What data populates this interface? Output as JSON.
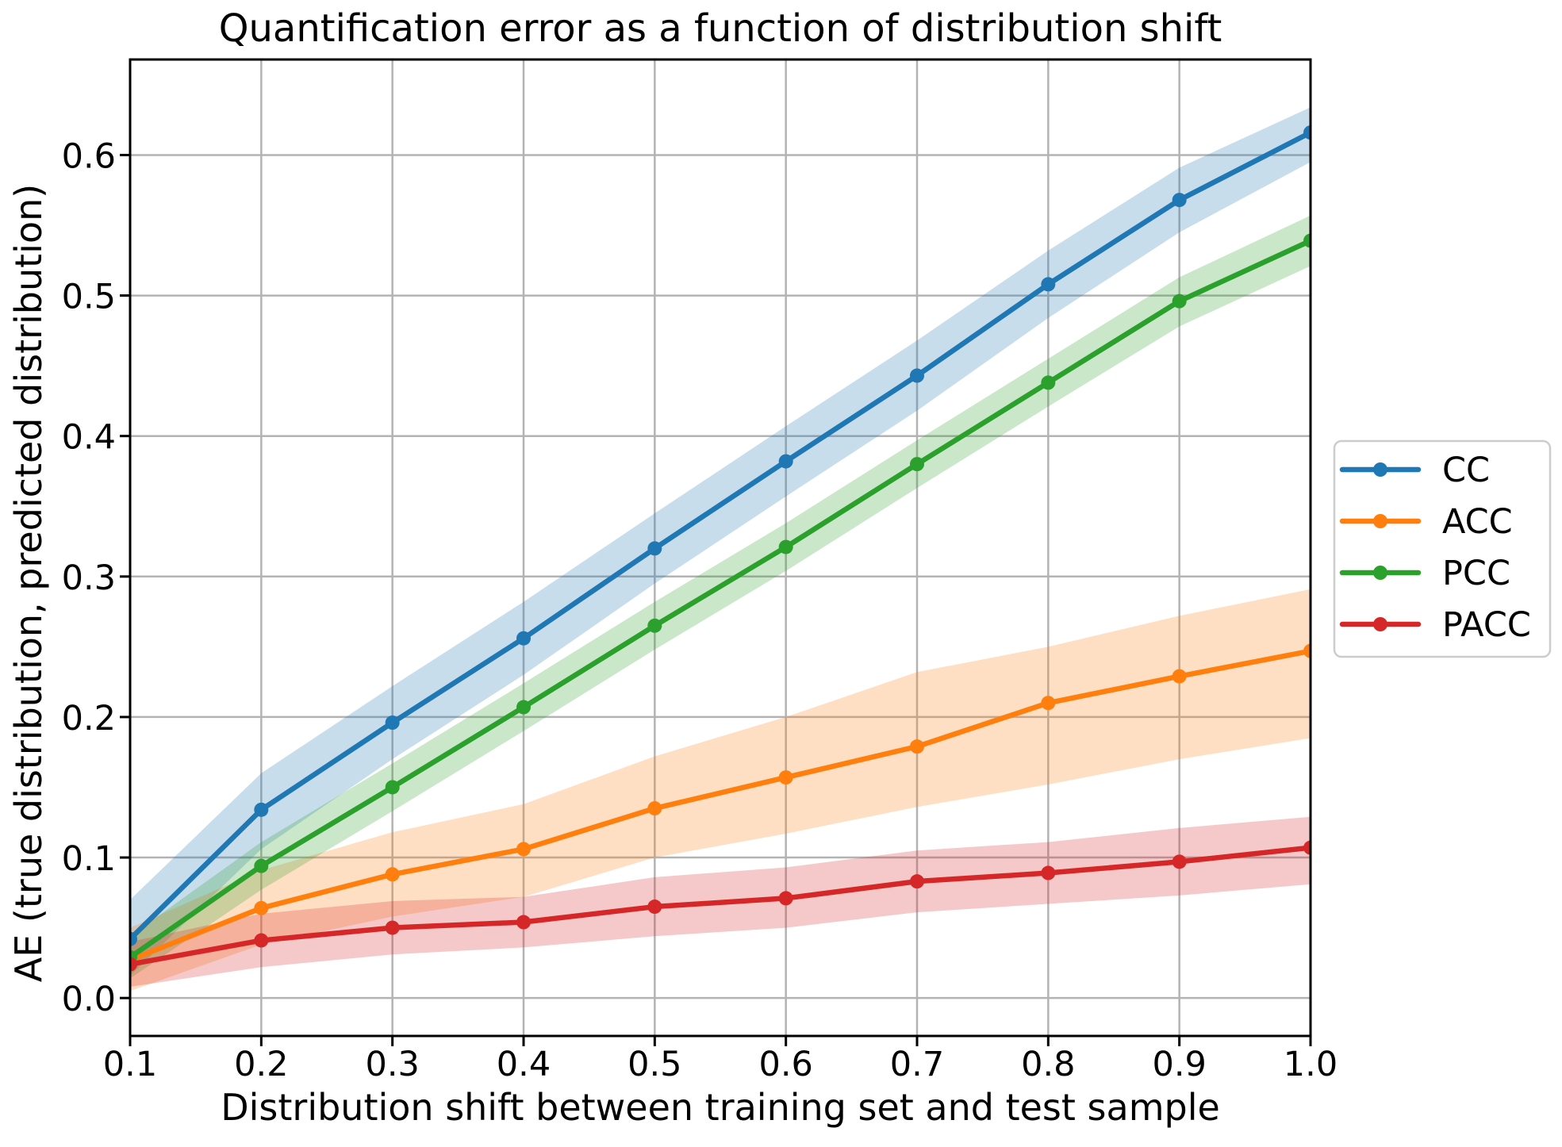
{
  "figure": {
    "background_color": "#ffffff",
    "text_color": "#000000",
    "grid_color": "#b3b3b3",
    "spine_color": "#000000",
    "legend_border_color": "#cccccc",
    "legend_background_color": "#ffffff"
  },
  "chart_data": {
    "type": "line",
    "title": "Quantification error as a function of distribution shift",
    "xlabel": "Distribution shift between training set and test sample",
    "ylabel": "AE (true distribution, predicted distribution)",
    "grid": true,
    "legend_position": "outside-right",
    "xlim": [
      0.1,
      1.0
    ],
    "ylim": [
      -0.027,
      0.668
    ],
    "x_tick_values": [
      0.1,
      0.2,
      0.3,
      0.4,
      0.5,
      0.6,
      0.7,
      0.8,
      0.9,
      1.0
    ],
    "x_tick_labels": [
      "0.1",
      "0.2",
      "0.3",
      "0.4",
      "0.5",
      "0.6",
      "0.7",
      "0.8",
      "0.9",
      "1.0"
    ],
    "y_tick_values": [
      0.0,
      0.1,
      0.2,
      0.3,
      0.4,
      0.5,
      0.6
    ],
    "y_tick_labels": [
      "0.0",
      "0.1",
      "0.2",
      "0.3",
      "0.4",
      "0.5",
      "0.6"
    ],
    "x": [
      0.1,
      0.2,
      0.3,
      0.4,
      0.5,
      0.6,
      0.7,
      0.8,
      0.9,
      1.0
    ],
    "band_opacity": 0.25,
    "series": [
      {
        "name": "CC",
        "color": "#1f77b4",
        "values": [
          0.042,
          0.134,
          0.196,
          0.256,
          0.32,
          0.382,
          0.443,
          0.508,
          0.568,
          0.616
        ],
        "band_lower": [
          0.016,
          0.106,
          0.17,
          0.23,
          0.295,
          0.357,
          0.418,
          0.484,
          0.545,
          0.595
        ],
        "band_upper": [
          0.07,
          0.16,
          0.222,
          0.282,
          0.345,
          0.407,
          0.468,
          0.532,
          0.591,
          0.634
        ]
      },
      {
        "name": "ACC",
        "color": "#ff7f0e",
        "values": [
          0.027,
          0.064,
          0.088,
          0.106,
          0.135,
          0.157,
          0.179,
          0.21,
          0.229,
          0.247
        ],
        "band_lower": [
          0.005,
          0.038,
          0.058,
          0.072,
          0.1,
          0.117,
          0.136,
          0.152,
          0.17,
          0.185
        ],
        "band_upper": [
          0.05,
          0.091,
          0.118,
          0.138,
          0.172,
          0.2,
          0.232,
          0.25,
          0.272,
          0.291
        ]
      },
      {
        "name": "PCC",
        "color": "#2ca02c",
        "values": [
          0.029,
          0.094,
          0.15,
          0.207,
          0.265,
          0.321,
          0.38,
          0.438,
          0.496,
          0.539
        ],
        "band_lower": [
          0.014,
          0.077,
          0.133,
          0.19,
          0.248,
          0.304,
          0.363,
          0.421,
          0.478,
          0.521
        ],
        "band_upper": [
          0.044,
          0.111,
          0.167,
          0.224,
          0.282,
          0.338,
          0.397,
          0.455,
          0.513,
          0.557
        ]
      },
      {
        "name": "PACC",
        "color": "#d62728",
        "values": [
          0.024,
          0.041,
          0.05,
          0.054,
          0.065,
          0.071,
          0.083,
          0.089,
          0.097,
          0.107
        ],
        "band_lower": [
          0.008,
          0.022,
          0.031,
          0.036,
          0.044,
          0.05,
          0.061,
          0.067,
          0.073,
          0.081
        ],
        "band_upper": [
          0.04,
          0.06,
          0.069,
          0.072,
          0.086,
          0.093,
          0.105,
          0.111,
          0.121,
          0.129
        ]
      }
    ]
  }
}
